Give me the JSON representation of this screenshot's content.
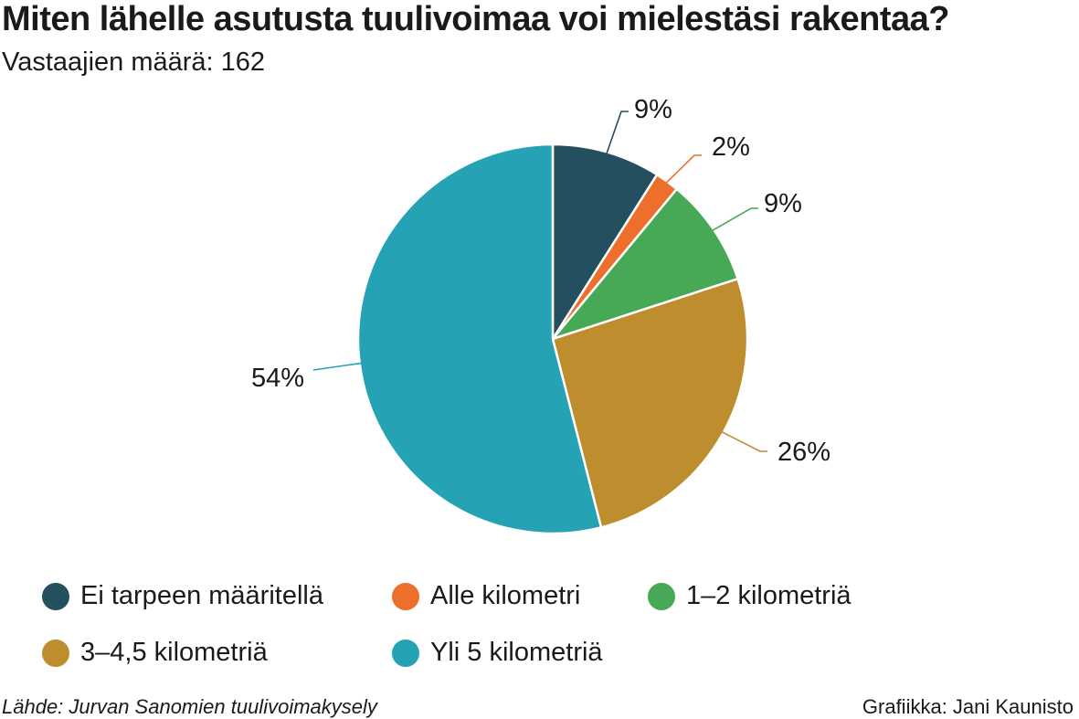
{
  "chart_data": {
    "type": "pie",
    "title": "Miten lähelle asutusta tuulivoimaa voi mielestäsi rakentaa?",
    "subtitle": "Vastaajien määrä: 162",
    "categories": [
      "Ei tarpeen määritellä",
      "Alle kilometri",
      "1–2 kilometriä",
      "3–4,5 kilometriä",
      "Yli 5 kilometriä"
    ],
    "values": [
      9,
      2,
      9,
      26,
      54
    ],
    "labels": [
      "9%",
      "2%",
      "9%",
      "26%",
      "54%"
    ],
    "colors": [
      "#244f5e",
      "#ee6e2b",
      "#47a955",
      "#bd8d2e",
      "#25a2b4"
    ],
    "legend_position": "bottom"
  },
  "footer": {
    "source": "Lähde: Jurvan Sanomien tuulivoimakysely",
    "credit": "Grafiikka: Jani Kaunisto"
  }
}
